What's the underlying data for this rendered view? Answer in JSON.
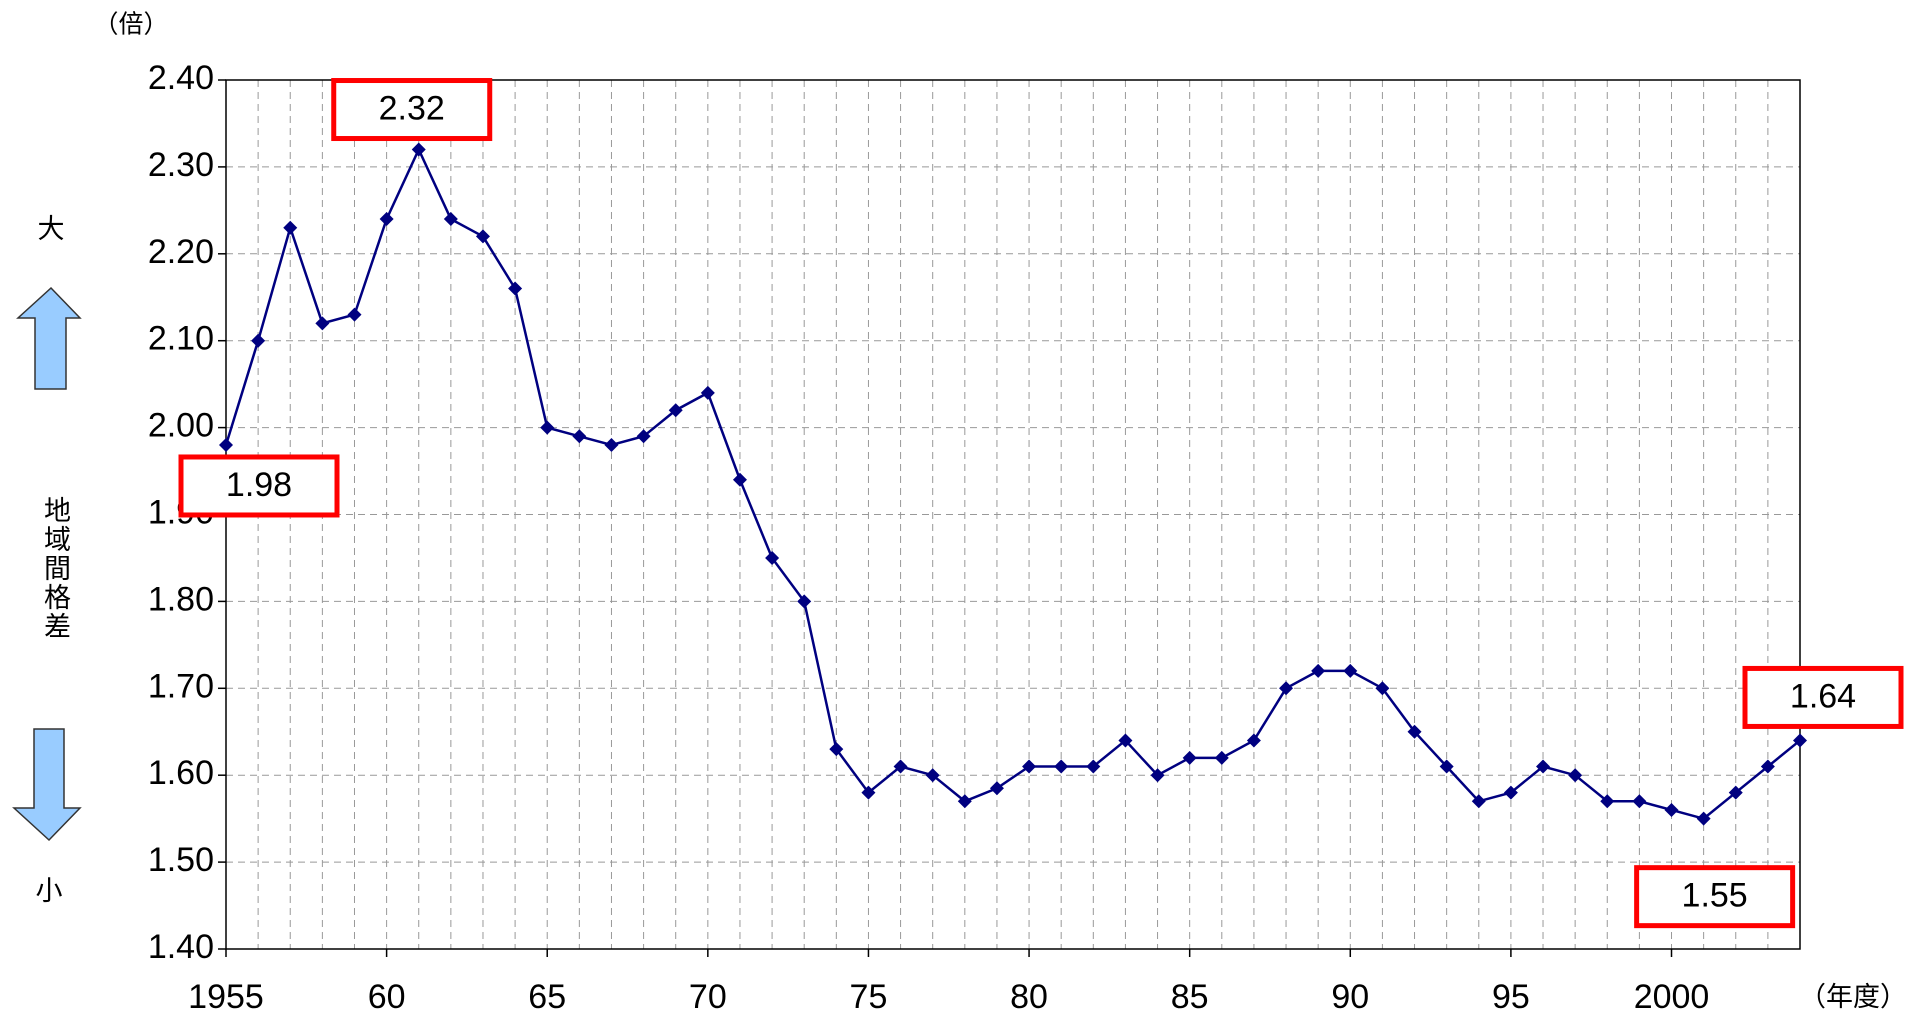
{
  "chart_data": {
    "type": "line",
    "x": [
      1955,
      1956,
      1957,
      1958,
      1959,
      1960,
      1961,
      1962,
      1963,
      1964,
      1965,
      1966,
      1967,
      1968,
      1969,
      1970,
      1971,
      1972,
      1973,
      1974,
      1975,
      1976,
      1977,
      1978,
      1979,
      1980,
      1981,
      1982,
      1983,
      1984,
      1985,
      1986,
      1987,
      1988,
      1989,
      1990,
      1991,
      1992,
      1993,
      1994,
      1995,
      1996,
      1997,
      1998,
      1999,
      2000,
      2001,
      2002,
      2003,
      2004
    ],
    "series": [
      {
        "name": "地域間格差",
        "color": "#000080",
        "values": [
          1.98,
          2.1,
          2.23,
          2.12,
          2.13,
          2.24,
          2.32,
          2.24,
          2.22,
          2.16,
          2.0,
          1.99,
          1.98,
          1.99,
          2.02,
          2.04,
          1.94,
          1.85,
          1.8,
          1.63,
          1.58,
          1.61,
          1.6,
          1.57,
          1.585,
          1.61,
          1.61,
          1.61,
          1.64,
          1.6,
          1.62,
          1.62,
          1.64,
          1.7,
          1.72,
          1.72,
          1.7,
          1.65,
          1.61,
          1.57,
          1.58,
          1.61,
          1.6,
          1.57,
          1.57,
          1.56,
          1.55,
          1.58,
          1.61,
          1.64
        ]
      }
    ],
    "xlim": [
      1955,
      2004
    ],
    "xticks": [
      1955,
      {
        "value": 1960,
        "label": "60"
      },
      {
        "value": 1965,
        "label": "65"
      },
      {
        "value": 1970,
        "label": "70"
      },
      {
        "value": 1975,
        "label": "75"
      },
      {
        "value": 1980,
        "label": "80"
      },
      {
        "value": 1985,
        "label": "85"
      },
      {
        "value": 1990,
        "label": "90"
      },
      {
        "value": 1995,
        "label": "95"
      },
      2000
    ],
    "ylim": [
      1.4,
      2.4
    ],
    "yticks": [
      {
        "value": 1.4,
        "label": "1.40"
      },
      {
        "value": 1.5,
        "label": "1.50"
      },
      {
        "value": 1.6,
        "label": "1.60"
      },
      {
        "value": 1.7,
        "label": "1.70"
      },
      {
        "value": 1.8,
        "label": "1.80"
      },
      {
        "value": 1.9,
        "label": "1.90"
      },
      {
        "value": 2.0,
        "label": "2.00"
      },
      {
        "value": 2.1,
        "label": "2.10"
      },
      {
        "value": 2.2,
        "label": "2.20"
      },
      {
        "value": 2.3,
        "label": "2.30"
      },
      {
        "value": 2.4,
        "label": "2.40"
      }
    ],
    "grid": true,
    "y_unit": "（倍）",
    "x_unit": "（年度）",
    "y_label": "地域間格差",
    "y_top_label": "大",
    "y_bottom_label": "小",
    "annotations": [
      {
        "label": "2.32",
        "x": 1961,
        "y": 2.32
      },
      {
        "label": "1.98",
        "x": 1955,
        "y": 1.98
      },
      {
        "label": "1.64",
        "x": 2004,
        "y": 1.64
      },
      {
        "label": "1.55",
        "x": 2001,
        "y": 1.55
      }
    ]
  }
}
